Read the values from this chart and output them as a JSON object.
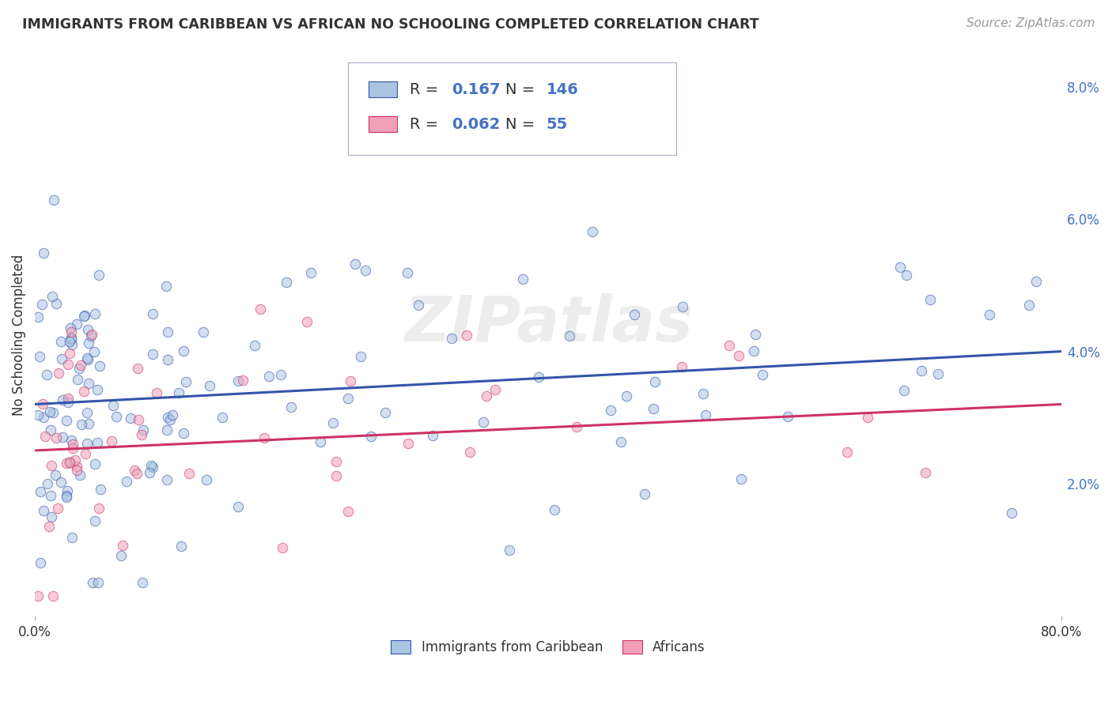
{
  "title": "IMMIGRANTS FROM CARIBBEAN VS AFRICAN NO SCHOOLING COMPLETED CORRELATION CHART",
  "source": "Source: ZipAtlas.com",
  "ylabel": "No Schooling Completed",
  "xmin": 0.0,
  "xmax": 0.8,
  "ymin": 0.0,
  "ymax": 0.085,
  "caribbean_R": 0.167,
  "caribbean_N": 146,
  "african_R": 0.062,
  "african_N": 55,
  "caribbean_color": "#aac4e2",
  "african_color": "#f0a0b8",
  "trendline_caribbean_color": "#3355aa",
  "trendline_african_color": "#cc3366",
  "watermark": "ZIPatlas",
  "legend_label_caribbean": "Immigrants from Caribbean",
  "legend_label_african": "Africans",
  "grid_color": "#cccccc",
  "background_color": "#ffffff",
  "carib_trendline_y0": 0.032,
  "carib_trendline_y1": 0.04,
  "afric_trendline_y0": 0.025,
  "afric_trendline_y1": 0.032
}
